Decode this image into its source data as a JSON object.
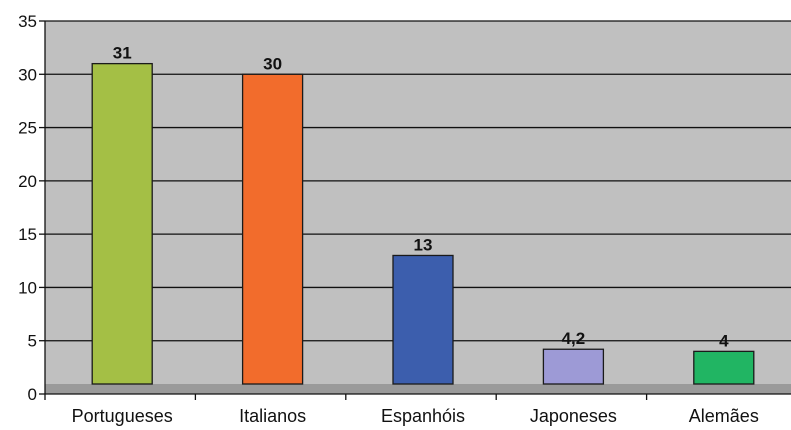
{
  "chart_data": {
    "type": "bar",
    "title": "",
    "xlabel": "",
    "ylabel": "",
    "categories": [
      "Portugueses",
      "Italianos",
      "Espanhóis",
      "Japoneses",
      "Alemães"
    ],
    "values": [
      31,
      30,
      13,
      4.2,
      4
    ],
    "value_labels": [
      "31",
      "30",
      "13",
      "4,2",
      "4"
    ],
    "colors": [
      "#a4bf45",
      "#f26c2c",
      "#3c5ead",
      "#9d9ad6",
      "#21b563"
    ],
    "ylim": [
      0,
      35
    ],
    "yticks": [
      0,
      5,
      10,
      15,
      20,
      25,
      30,
      35
    ],
    "grid": true,
    "legend": "none",
    "plot_background": "#c0c0c0"
  }
}
